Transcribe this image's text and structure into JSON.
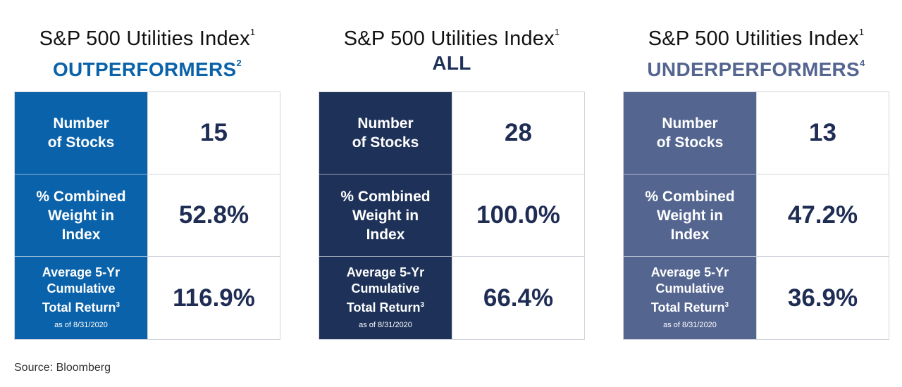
{
  "chart_data": {
    "type": "table",
    "title": "S&P 500 Utilities Index",
    "title_footnote": "1",
    "row_labels": [
      "Number of Stocks",
      "% Combined Weight in Index",
      "Average 5-Yr Cumulative Total Return as of 8/31/2020"
    ],
    "panels": [
      {
        "title": "S&P 500 Utilities Index",
        "title_footnote": "1",
        "subtitle": "OUTPERFORMERS",
        "subtitle_footnote": "2",
        "color": "#0a62aa",
        "number_of_stocks": 15,
        "combined_weight_pct": 52.8,
        "avg_5yr_return_pct": 116.9,
        "display": [
          "15",
          "52.8%",
          "116.9%"
        ]
      },
      {
        "title": "S&P 500 Utilities Index",
        "title_footnote": "1",
        "subtitle": "ALL",
        "subtitle_footnote": "",
        "color": "#1e3259",
        "number_of_stocks": 28,
        "combined_weight_pct": 100.0,
        "avg_5yr_return_pct": 66.4,
        "display": [
          "28",
          "100.0%",
          "66.4%"
        ]
      },
      {
        "title": "S&P 500 Utilities Index",
        "title_footnote": "1",
        "subtitle": "UNDERPERFORMERS",
        "subtitle_footnote": "4",
        "color": "#546590",
        "number_of_stocks": 13,
        "combined_weight_pct": 47.2,
        "avg_5yr_return_pct": 36.9,
        "display": [
          "13",
          "47.2%",
          "36.9%"
        ]
      }
    ]
  },
  "labels": {
    "number_line1": "Number",
    "number_line2": "of Stocks",
    "weight_line1": "% Combined",
    "weight_line2": "Weight in",
    "weight_line3": "Index",
    "return_line1": "Average 5-Yr",
    "return_line2": "Cumulative",
    "return_line3": "Total Return",
    "return_footnote": "3",
    "as_of": "as of 8/31/2020"
  },
  "source": "Source: Bloomberg"
}
